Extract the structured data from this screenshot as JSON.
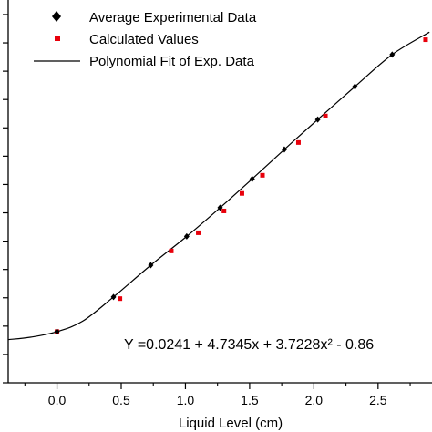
{
  "chart_data": {
    "type": "scatter",
    "xlabel": "Liquid Level (cm)",
    "ylabel": "",
    "xlim": [
      -0.38,
      2.92
    ],
    "ylim": [
      0,
      1
    ],
    "x_ticks": [
      "0.0",
      "0.5",
      "1.0",
      "1.5",
      "2.0",
      "2.5"
    ],
    "x_tick_values": [
      0.0,
      0.5,
      1.0,
      1.5,
      2.0,
      2.5
    ],
    "y_tick_values": [
      0.0,
      0.074,
      0.148,
      0.222,
      0.296,
      0.37,
      0.444,
      0.518,
      0.592,
      0.666,
      0.74,
      0.814,
      0.888,
      0.962
    ],
    "grid": false,
    "legend_position": "top-left",
    "legend": [
      {
        "label": "Average Experimental Data",
        "marker": "diamond",
        "color": "#000000"
      },
      {
        "label": "Calculated Values",
        "marker": "square",
        "color": "#e8000b"
      },
      {
        "label": "Polynomial Fit of Exp. Data",
        "marker": "line",
        "color": "#000000"
      }
    ],
    "equation": "Y =0.0241 + 4.7345x + 3.7228x² - 0.86",
    "series": [
      {
        "name": "Average Experimental Data",
        "color": "#000000",
        "marker": "diamond",
        "points": [
          [
            0.0,
            0.1336
          ],
          [
            0.44,
            0.2242
          ],
          [
            0.73,
            0.3072
          ],
          [
            1.01,
            0.3824
          ],
          [
            1.27,
            0.4573
          ],
          [
            1.52,
            0.5325
          ],
          [
            1.77,
            0.6095
          ],
          [
            2.03,
            0.6878
          ],
          [
            2.32,
            0.7738
          ],
          [
            2.61,
            0.8575
          ]
        ]
      },
      {
        "name": "Calculated Values",
        "color": "#e8000b",
        "marker": "square",
        "points": [
          [
            0.0,
            0.1336
          ],
          [
            0.49,
            0.2198
          ],
          [
            0.89,
            0.3444
          ],
          [
            1.1,
            0.3919
          ],
          [
            1.3,
            0.4489
          ],
          [
            1.44,
            0.4947
          ],
          [
            1.6,
            0.5421
          ],
          [
            1.88,
            0.6277
          ],
          [
            2.09,
            0.6969
          ],
          [
            2.87,
            0.8963
          ]
        ]
      }
    ],
    "fit_curve": {
      "name": "Polynomial Fit of Exp. Data",
      "color": "#000000",
      "points": [
        [
          -0.38,
          0.1127
        ],
        [
          -0.2,
          0.1194
        ],
        [
          0.0,
          0.1336
        ],
        [
          0.2,
          0.1609
        ],
        [
          0.44,
          0.2242
        ],
        [
          0.73,
          0.3072
        ],
        [
          1.01,
          0.3824
        ],
        [
          1.27,
          0.4573
        ],
        [
          1.52,
          0.5325
        ],
        [
          1.77,
          0.6095
        ],
        [
          2.03,
          0.6878
        ],
        [
          2.32,
          0.7738
        ],
        [
          2.61,
          0.8575
        ],
        [
          2.9,
          0.9159
        ]
      ]
    }
  }
}
